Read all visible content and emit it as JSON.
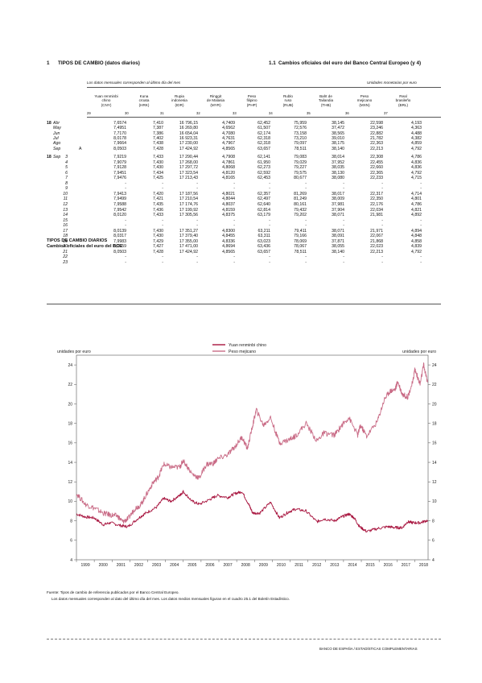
{
  "header": {
    "left_number": "1",
    "left_title": "TIPOS DE CAMBIO (datos diarios)",
    "right_number": "1.1",
    "right_title": "Cambios oficiales del euro del Banco Central Europeo (y 4)"
  },
  "table": {
    "note_left": "Los datos mensuales corresponden al último día del mes",
    "note_right": "Unidades monetarias por euro",
    "columns": [
      {
        "name": "Yuan renminbi\nchino\n(CNY)",
        "num": "29"
      },
      {
        "name": "Kuna\ncroata\n(HRK)",
        "num": "30"
      },
      {
        "name": "Rupia\nindonesia\n(IDR)",
        "num": "31"
      },
      {
        "name": "Ringgit\nde Malasia\n(MYR)",
        "num": "32"
      },
      {
        "name": "Peso\nfilipino\n(PHP)",
        "num": "33"
      },
      {
        "name": "Rublo\nruso\n(RUB)",
        "num": "34"
      },
      {
        "name": "Baht de\nTailandia\n(THB)",
        "num": "35"
      },
      {
        "name": "Peso\nmejicano\n(MXN)",
        "num": "36"
      },
      {
        "name": "Real\nbrasileño\n(BRL)",
        "num": "37"
      }
    ],
    "monthly_rows": [
      {
        "year": "18",
        "label": "Abr",
        "flag": "",
        "values": [
          "7,6574",
          "7,410",
          "16 796,15",
          "4,7409",
          "62,452",
          "75,959",
          "38,145",
          "22,598",
          "4,193"
        ]
      },
      {
        "year": "",
        "label": "May",
        "flag": "",
        "values": [
          "7,4951",
          "7,387",
          "16 269,80",
          "4,6562",
          "61,507",
          "72,576",
          "37,472",
          "23,246",
          "4,363"
        ]
      },
      {
        "year": "",
        "label": "Jun",
        "flag": "",
        "values": [
          "7,7170",
          "7,386",
          "16 654,04",
          "4,7080",
          "62,174",
          "73,158",
          "38,565",
          "22,882",
          "4,488"
        ]
      },
      {
        "year": "",
        "label": "Jul",
        "flag": "",
        "values": [
          "8,0178",
          "7,402",
          "16 923,31",
          "4,7631",
          "62,318",
          "73,210",
          "39,010",
          "21,782",
          "4,382"
        ]
      },
      {
        "year": "",
        "label": "Ago",
        "flag": "",
        "values": [
          "7,9664",
          "7,438",
          "17 230,00",
          "4,7967",
          "62,318",
          "79,097",
          "38,175",
          "22,363",
          "4,859"
        ]
      },
      {
        "year": "",
        "label": "Sep",
        "flag": "A",
        "values": [
          "8,0503",
          "7,428",
          "17 424,92",
          "4,8565",
          "63,657",
          "78,511",
          "38,140",
          "22,213",
          "4,792"
        ]
      }
    ],
    "daily_rows": [
      {
        "year": "18",
        "label": "Sep",
        "day": "3",
        "values": [
          "7,9219",
          "7,433",
          "17 290,44",
          "4,7908",
          "62,141",
          "79,083",
          "38,014",
          "22,308",
          "4,786"
        ]
      },
      {
        "year": "",
        "label": "",
        "day": "4",
        "values": [
          "7,9079",
          "7,430",
          "17 268,00",
          "4,7861",
          "61,950",
          "79,029",
          "37,952",
          "22,455",
          "4,836"
        ]
      },
      {
        "year": "",
        "label": "",
        "day": "5",
        "values": [
          "7,9128",
          "7,430",
          "17 297,72",
          "4,8068",
          "62,273",
          "79,227",
          "38,035",
          "22,660",
          "4,836"
        ]
      },
      {
        "year": "",
        "label": "",
        "day": "6",
        "values": [
          "7,9451",
          "7,434",
          "17 323,54",
          "4,8120",
          "62,592",
          "79,575",
          "38,130",
          "22,365",
          "4,792"
        ]
      },
      {
        "year": "",
        "label": "",
        "day": "7",
        "values": [
          "7,9476",
          "7,425",
          "17 213,43",
          "4,8165",
          "62,453",
          "80,677",
          "38,080",
          "22,233",
          "4,715"
        ]
      },
      {
        "year": "",
        "label": "",
        "day": "8",
        "values": [
          "-",
          "-",
          "-",
          "-",
          "-",
          "-",
          "-",
          "-",
          "-"
        ]
      },
      {
        "year": "",
        "label": "",
        "day": "9",
        "values": [
          "-",
          "-",
          "-",
          "-",
          "-",
          "-",
          "-",
          "-",
          "-"
        ]
      },
      {
        "year": "",
        "label": "",
        "day": "10",
        "values": [
          "7,9413",
          "7,420",
          "17 187,56",
          "4,8021",
          "62,357",
          "81,269",
          "38,017",
          "22,317",
          "4,714"
        ]
      },
      {
        "year": "",
        "label": "",
        "day": "11",
        "values": [
          "7,9499",
          "7,421",
          "17 210,54",
          "4,8044",
          "62,497",
          "81,249",
          "38,009",
          "22,350",
          "4,801"
        ]
      },
      {
        "year": "",
        "label": "",
        "day": "12",
        "values": [
          "7,9588",
          "7,435",
          "17 174,76",
          "4,8037",
          "62,640",
          "80,161",
          "37,981",
          "22,176",
          "4,786"
        ]
      },
      {
        "year": "",
        "label": "",
        "day": "13",
        "values": [
          "7,9542",
          "7,436",
          "17 199,92",
          "4,8159",
          "62,814",
          "79,432",
          "37,904",
          "22,034",
          "4,821"
        ]
      },
      {
        "year": "",
        "label": "",
        "day": "14",
        "values": [
          "8,0120",
          "7,433",
          "17 305,56",
          "4,8375",
          "63,179",
          "79,202",
          "38,071",
          "21,981",
          "4,892"
        ]
      },
      {
        "year": "",
        "label": "",
        "day": "15",
        "values": [
          "-",
          "-",
          "-",
          "-",
          "-",
          "-",
          "-",
          "-",
          "-"
        ]
      },
      {
        "year": "",
        "label": "",
        "day": "16",
        "values": [
          "-",
          "-",
          "-",
          "-",
          "-",
          "-",
          "-",
          "-",
          "-"
        ]
      },
      {
        "year": "",
        "label": "",
        "day": "17",
        "values": [
          "8,0139",
          "7,430",
          "17 351,27",
          "4,8300",
          "63,211",
          "79,411",
          "38,071",
          "21,971",
          "4,894"
        ]
      },
      {
        "year": "",
        "label": "",
        "day": "18",
        "values": [
          "8,0317",
          "7,430",
          "17 379,40",
          "4,8455",
          "63,311",
          "79,166",
          "38,091",
          "22,067",
          "4,848"
        ]
      },
      {
        "year": "",
        "label": "",
        "day": "19",
        "values": [
          "7,9983",
          "7,429",
          "17 355,00",
          "4,8336",
          "63,023",
          "78,069",
          "37,871",
          "21,868",
          "4,858"
        ]
      },
      {
        "year": "",
        "label": "",
        "day": "20",
        "values": [
          "8,0559",
          "7,427",
          "17 471,00",
          "4,8694",
          "63,436",
          "78,067",
          "38,055",
          "22,023",
          "4,839"
        ]
      },
      {
        "year": "",
        "label": "",
        "day": "21",
        "values": [
          "8,0503",
          "7,428",
          "17 424,92",
          "4,8565",
          "63,657",
          "78,511",
          "38,140",
          "22,213",
          "4,792"
        ]
      },
      {
        "year": "",
        "label": "",
        "day": "22",
        "values": [
          "-",
          "-",
          "-",
          "-",
          "-",
          "-",
          "-",
          "-",
          "-"
        ]
      },
      {
        "year": "",
        "label": "",
        "day": "23",
        "values": [
          "-",
          "-",
          "-",
          "-",
          "-",
          "-",
          "-",
          "-",
          "-"
        ]
      }
    ]
  },
  "chart_data": {
    "type": "line",
    "title": "TIPOS DE CAMBIO DIARIOS",
    "subtitle": "Cambios oficiales del euro del BCE",
    "ylabel_left": "unidades por euro",
    "ylabel_right": "unidades por euro",
    "ylim": [
      4,
      25
    ],
    "yticks": [
      4,
      6,
      8,
      10,
      12,
      14,
      16,
      18,
      20,
      22,
      24
    ],
    "xlim": [
      1999.0,
      2018.75
    ],
    "xticks": [
      "1999",
      "2000",
      "2001",
      "2002",
      "2003",
      "2004",
      "2005",
      "2006",
      "2007",
      "2008",
      "2009",
      "2010",
      "2011",
      "2012",
      "2013",
      "2014",
      "2015",
      "2016",
      "2017",
      "2018"
    ],
    "grid": false,
    "legend_placement": "top-center",
    "series": [
      {
        "name": "Yuan renminbi chino",
        "color": "#a8153f",
        "x": [
          1999.0,
          1999.5,
          2000.0,
          2000.5,
          2000.9,
          2001.5,
          2001.9,
          2002.5,
          2002.9,
          2003.5,
          2003.9,
          2004.3,
          2004.8,
          2005.0,
          2005.5,
          2005.9,
          2006.5,
          2006.9,
          2007.5,
          2007.9,
          2008.3,
          2008.7,
          2008.9,
          2009.3,
          2009.9,
          2010.4,
          2010.9,
          2011.3,
          2011.9,
          2012.5,
          2012.9,
          2013.5,
          2013.9,
          2014.3,
          2014.6,
          2014.9,
          2015.3,
          2015.9,
          2016.5,
          2016.9,
          2017.3,
          2017.6,
          2017.9,
          2018.3,
          2018.72
        ],
        "y": [
          8.7,
          8.4,
          8.3,
          7.6,
          7.8,
          7.5,
          7.4,
          8.3,
          8.8,
          9.4,
          10.3,
          10.0,
          10.6,
          11.0,
          10.0,
          9.7,
          10.2,
          10.6,
          10.4,
          10.8,
          11.0,
          9.6,
          8.8,
          8.8,
          9.9,
          8.3,
          8.9,
          9.2,
          9.0,
          7.9,
          8.2,
          8.0,
          8.4,
          8.7,
          8.3,
          7.4,
          6.9,
          7.2,
          7.4,
          7.3,
          7.3,
          7.9,
          7.8,
          7.8,
          8.05
        ]
      },
      {
        "name": "Peso mejicano",
        "color": "#c96b86",
        "x": [
          1999.0,
          1999.5,
          2000.0,
          2000.5,
          2000.9,
          2001.3,
          2001.6,
          2001.9,
          2002.3,
          2002.6,
          2002.9,
          2003.3,
          2003.6,
          2003.9,
          2004.3,
          2004.8,
          2005.0,
          2005.5,
          2005.9,
          2006.3,
          2006.7,
          2006.9,
          2007.5,
          2007.9,
          2008.3,
          2008.6,
          2008.9,
          2009.1,
          2009.5,
          2009.9,
          2010.4,
          2010.9,
          2011.3,
          2011.9,
          2012.5,
          2012.9,
          2013.5,
          2013.9,
          2014.3,
          2014.8,
          2014.95,
          2015.3,
          2015.9,
          2016.3,
          2016.6,
          2016.9,
          2017.05,
          2017.3,
          2017.6,
          2017.9,
          2018.0,
          2018.3,
          2018.5,
          2018.72
        ],
        "y": [
          10.8,
          9.7,
          9.3,
          8.8,
          8.6,
          8.5,
          7.9,
          8.2,
          9.3,
          9.6,
          10.6,
          11.9,
          12.5,
          13.8,
          13.5,
          13.5,
          14.2,
          12.8,
          12.4,
          13.8,
          13.9,
          14.3,
          14.8,
          15.6,
          16.6,
          15.4,
          17.8,
          19.4,
          17.8,
          18.6,
          16.0,
          16.3,
          16.7,
          18.0,
          16.2,
          17.0,
          16.8,
          17.8,
          18.6,
          16.8,
          17.8,
          16.7,
          18.2,
          20.5,
          21.3,
          21.5,
          22.3,
          21.0,
          20.7,
          22.3,
          23.6,
          22.0,
          24.0,
          22.2
        ]
      }
    ]
  },
  "footer": {
    "source": "Fuente: Tipos de cambio de referencia publicados por el Banco Central Europeo.",
    "note": "Los datos mensuales corresponden al dato del último día del mes. Los datos medios mensuales figuran en el cuadro 25.1 del Boletín Estadístico.",
    "publisher": "BANCO DE ESPAÑA / ESTADÍSTICAS COMPLEMENTARIAS"
  }
}
